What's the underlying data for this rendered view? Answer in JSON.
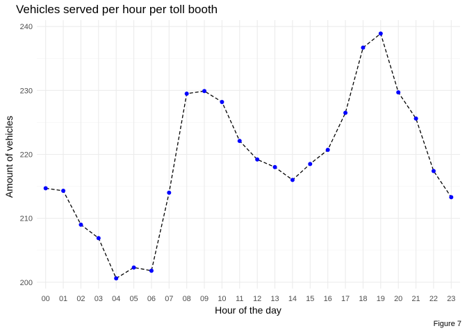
{
  "chart_data": {
    "type": "line",
    "title": "Vehicles served per hour per toll booth",
    "xlabel": "Hour of the day",
    "ylabel": "Amount of vehicles",
    "caption": "Figure 7",
    "categories": [
      "00",
      "01",
      "02",
      "03",
      "04",
      "05",
      "06",
      "07",
      "08",
      "09",
      "10",
      "11",
      "12",
      "13",
      "14",
      "15",
      "16",
      "17",
      "18",
      "19",
      "20",
      "21",
      "22",
      "23"
    ],
    "values": [
      214.7,
      214.3,
      209.0,
      206.9,
      200.6,
      202.3,
      201.8,
      214.0,
      229.5,
      229.9,
      228.2,
      222.1,
      219.2,
      218.0,
      216.0,
      218.5,
      220.7,
      226.5,
      236.7,
      238.9,
      229.7,
      225.6,
      217.4,
      213.3
    ],
    "ylim": [
      199,
      241
    ],
    "yticks": [
      200,
      210,
      220,
      230,
      240
    ],
    "grid": true,
    "line_style": "dashed",
    "line_color": "#000000",
    "point_color": "#0000ff"
  }
}
